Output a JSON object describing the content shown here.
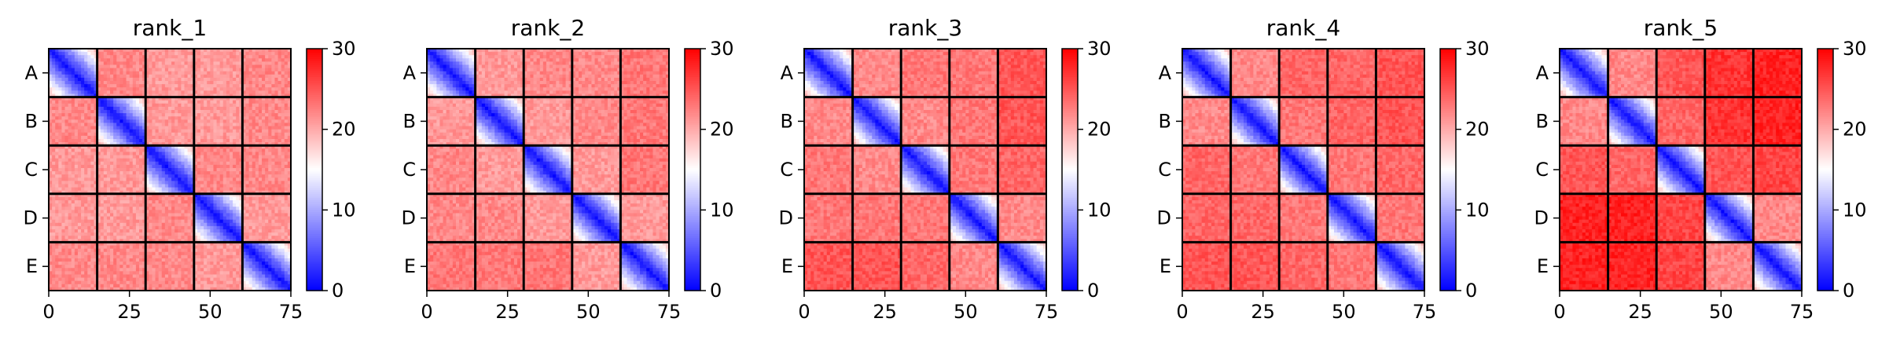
{
  "chart_data": {
    "type": "heatmap",
    "colormap": "bwr",
    "colors": {
      "low": "#0000ff",
      "mid": "#ffffff",
      "high": "#ff0000"
    },
    "value_range": [
      0,
      30
    ],
    "colorbar_ticks": [
      "0",
      "10",
      "20",
      "30"
    ],
    "x_ticks": [
      "0",
      "25",
      "50",
      "75"
    ],
    "x_range": [
      0,
      75
    ],
    "block_labels": [
      "A",
      "B",
      "C",
      "D",
      "E"
    ],
    "block_size": 15,
    "grid": false,
    "panels": [
      {
        "title": "rank_1",
        "diag_low": 1,
        "diag_high": 19,
        "block_offdiag": 26,
        "block_means": [
          [
            13,
            22,
            21,
            21,
            22
          ],
          [
            22,
            13,
            21,
            21,
            22
          ],
          [
            21,
            21,
            13,
            22,
            22
          ],
          [
            21,
            21,
            22,
            13,
            21
          ],
          [
            22,
            22,
            22,
            21,
            13
          ]
        ]
      },
      {
        "title": "rank_2",
        "diag_low": 1,
        "diag_high": 19,
        "block_offdiag": 26,
        "block_means": [
          [
            13,
            21,
            22,
            22,
            23
          ],
          [
            21,
            13,
            21,
            22,
            23
          ],
          [
            22,
            21,
            13,
            21,
            23
          ],
          [
            22,
            22,
            21,
            13,
            21
          ],
          [
            23,
            23,
            23,
            21,
            13
          ]
        ]
      },
      {
        "title": "rank_3",
        "diag_low": 1,
        "diag_high": 19,
        "block_offdiag": 26,
        "block_means": [
          [
            13,
            22,
            23,
            23,
            25
          ],
          [
            22,
            13,
            22,
            23,
            25
          ],
          [
            23,
            22,
            13,
            23,
            24
          ],
          [
            23,
            23,
            23,
            13,
            22
          ],
          [
            25,
            25,
            24,
            22,
            13
          ]
        ]
      },
      {
        "title": "rank_4",
        "diag_low": 1,
        "diag_high": 19,
        "block_offdiag": 26,
        "block_means": [
          [
            13,
            22,
            24,
            24,
            25
          ],
          [
            22,
            13,
            23,
            24,
            25
          ],
          [
            24,
            23,
            13,
            23,
            24
          ],
          [
            24,
            24,
            23,
            13,
            23
          ],
          [
            25,
            25,
            24,
            23,
            13
          ]
        ]
      },
      {
        "title": "rank_5",
        "diag_low": 1,
        "diag_high": 19,
        "block_offdiag": 26,
        "block_means": [
          [
            13,
            22,
            25,
            27,
            28
          ],
          [
            22,
            13,
            24,
            27,
            28
          ],
          [
            25,
            24,
            13,
            25,
            26
          ],
          [
            28,
            28,
            26,
            13,
            22
          ],
          [
            28,
            28,
            26,
            22,
            13
          ]
        ]
      }
    ]
  }
}
